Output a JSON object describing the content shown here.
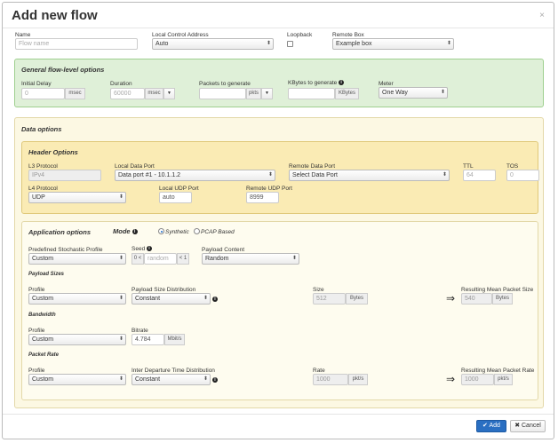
{
  "dialog": {
    "title": "Add new flow",
    "close": "×"
  },
  "top": {
    "name_label": "Name",
    "name_placeholder": "Flow name",
    "lca_label": "Local Control Address",
    "lca_value": "Auto",
    "loopback_label": "Loopback",
    "remote_box_label": "Remote Box",
    "remote_box_value": "Example box"
  },
  "general": {
    "title": "General flow-level options",
    "initial_delay_label": "Initial Delay",
    "initial_delay_value": "0",
    "initial_delay_unit": "msec",
    "duration_label": "Duration",
    "duration_value": "60000",
    "duration_unit": "msec",
    "packets_label": "Packets to generate",
    "packets_unit": "pkts",
    "kbytes_label": "KBytes to generate",
    "kbytes_unit": "KBytes",
    "meter_label": "Meter",
    "meter_value": "One Way"
  },
  "data_options": {
    "title": "Data options"
  },
  "header_options": {
    "title": "Header Options",
    "l3_label": "L3 Protocol",
    "l3_value": "IPv4",
    "ldp_label": "Local Data Port",
    "ldp_value": "Data port #1 - 10.1.1.2",
    "rdp_label": "Remote Data Port",
    "rdp_value": "Select Data Port",
    "ttl_label": "TTL",
    "ttl_value": "64",
    "tos_label": "TOS",
    "tos_value": "0",
    "l4_label": "L4 Protocol",
    "l4_value": "UDP",
    "ludp_label": "Local UDP Port",
    "ludp_value": "auto",
    "rudp_label": "Remote UDP Port",
    "rudp_value": "8999"
  },
  "app_options": {
    "title": "Application options",
    "mode_label": "Mode",
    "mode_synthetic": "Synthetic",
    "mode_pcap": "PCAP Based",
    "psp_label": "Predefined Stochastic Profile",
    "psp_value": "Custom",
    "seed_label": "Seed",
    "seed_prefix": "0 <",
    "seed_placeholder": "random",
    "seed_suffix": "< 1",
    "payload_content_label": "Payload Content",
    "payload_content_value": "Random",
    "payload_sizes_title": "Payload Sizes",
    "ps_profile_label": "Profile",
    "ps_profile_value": "Custom",
    "ps_dist_label": "Payload Size Distribution",
    "ps_dist_value": "Constant",
    "size_label": "Size",
    "size_value": "512",
    "size_unit": "Bytes",
    "rmps_label": "Resulting Mean Packet Size",
    "rmps_value": "540",
    "rmps_unit": "Bytes",
    "bandwidth_title": "Bandwidth",
    "bw_profile_label": "Profile",
    "bw_profile_value": "Custom",
    "bitrate_label": "Bitrate",
    "bitrate_value": "4.784",
    "bitrate_unit": "Mbit/s",
    "packet_rate_title": "Packet Rate",
    "pr_profile_label": "Profile",
    "pr_profile_value": "Custom",
    "idt_label": "Inter Departure Time Distribution",
    "idt_value": "Constant",
    "rate_label": "Rate",
    "rate_value": "1000",
    "rate_unit": "pkt/s",
    "rmpr_label": "Resulting Mean Packet Rate",
    "rmpr_value": "1000",
    "rmpr_unit": "pkt/s"
  },
  "footer": {
    "add_label": "✔ Add",
    "cancel_label": "✖ Cancel"
  }
}
